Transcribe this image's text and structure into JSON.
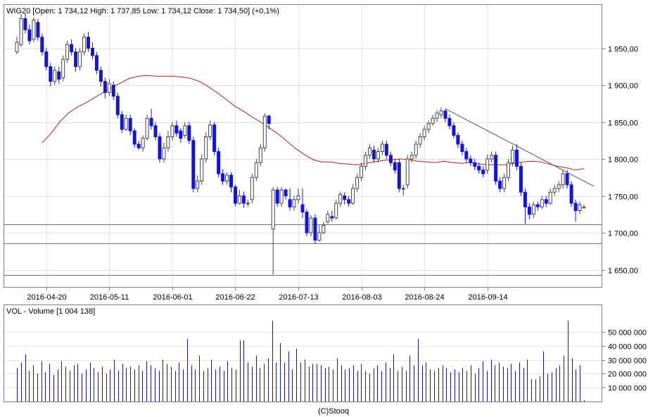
{
  "chart_data": [
    {
      "type": "candlestick",
      "title": "WIG20 [Open: 1 734,12  High: 1 737,85  Low: 1 734,12  Close: 1 734,50] (+0,1%)",
      "ylim": [
        1640,
        2000
      ],
      "y_ticks": [
        1650,
        1700,
        1750,
        1800,
        1850,
        1900,
        1950
      ],
      "y_tick_labels": [
        "1 650,00",
        "1 700,00",
        "1 750,00",
        "1 800,00",
        "1 850,00",
        "1 900,00",
        "1 950,00"
      ],
      "x_tick_labels": [
        "2016-04-20",
        "2016-05-11",
        "2016-06-01",
        "2016-06-22",
        "2016-07-13",
        "2016-08-03",
        "2016-08-24",
        "2016-09-14"
      ],
      "horizontal_lines": [
        1711,
        1686,
        1643
      ],
      "trendline": {
        "from": [
          1868,
          "2016-08-12"
        ],
        "to": [
          1763,
          "2016-10-05"
        ]
      },
      "moving_average": {
        "color": "#b22222",
        "values": [
          1822,
          1834,
          1850,
          1862,
          1870,
          1876,
          1883,
          1890,
          1897,
          1903,
          1909,
          1912,
          1913,
          1912,
          1912,
          1912,
          1911,
          1909,
          1905,
          1898,
          1890,
          1881,
          1872,
          1865,
          1857,
          1850,
          1842,
          1834,
          1824,
          1814,
          1806,
          1799,
          1796,
          1796,
          1794,
          1793,
          1792,
          1794,
          1796,
          1798,
          1799,
          1800,
          1799,
          1797,
          1796,
          1795,
          1797,
          1795,
          1794,
          1795,
          1793,
          1792,
          1792,
          1792,
          1794,
          1796,
          1797,
          1796,
          1793,
          1790,
          1788,
          1785,
          1787
        ]
      },
      "candles": [
        {
          "o": 1945,
          "c": 1958,
          "h": 1966,
          "l": 1942
        },
        {
          "o": 1955,
          "c": 1990,
          "h": 1996,
          "l": 1952
        },
        {
          "o": 1990,
          "c": 1975,
          "h": 1997,
          "l": 1970
        },
        {
          "o": 1975,
          "c": 1960,
          "h": 1982,
          "l": 1955
        },
        {
          "o": 1962,
          "c": 1988,
          "h": 1992,
          "l": 1958
        },
        {
          "o": 1985,
          "c": 1965,
          "h": 1990,
          "l": 1960
        },
        {
          "o": 1965,
          "c": 1945,
          "h": 1970,
          "l": 1940
        },
        {
          "o": 1945,
          "c": 1925,
          "h": 1950,
          "l": 1920
        },
        {
          "o": 1925,
          "c": 1905,
          "h": 1930,
          "l": 1898
        },
        {
          "o": 1905,
          "c": 1920,
          "h": 1925,
          "l": 1900
        },
        {
          "o": 1918,
          "c": 1908,
          "h": 1925,
          "l": 1902
        },
        {
          "o": 1910,
          "c": 1935,
          "h": 1940,
          "l": 1905
        },
        {
          "o": 1935,
          "c": 1955,
          "h": 1960,
          "l": 1930
        },
        {
          "o": 1955,
          "c": 1945,
          "h": 1962,
          "l": 1940
        },
        {
          "o": 1945,
          "c": 1925,
          "h": 1950,
          "l": 1918
        },
        {
          "o": 1925,
          "c": 1945,
          "h": 1950,
          "l": 1920
        },
        {
          "o": 1945,
          "c": 1965,
          "h": 1970,
          "l": 1940
        },
        {
          "o": 1965,
          "c": 1950,
          "h": 1972,
          "l": 1945
        },
        {
          "o": 1950,
          "c": 1940,
          "h": 1958,
          "l": 1935
        },
        {
          "o": 1940,
          "c": 1920,
          "h": 1945,
          "l": 1915
        },
        {
          "o": 1920,
          "c": 1905,
          "h": 1925,
          "l": 1898
        },
        {
          "o": 1905,
          "c": 1890,
          "h": 1910,
          "l": 1882
        },
        {
          "o": 1890,
          "c": 1902,
          "h": 1908,
          "l": 1885
        },
        {
          "o": 1900,
          "c": 1885,
          "h": 1905,
          "l": 1880
        },
        {
          "o": 1885,
          "c": 1860,
          "h": 1890,
          "l": 1855
        },
        {
          "o": 1860,
          "c": 1840,
          "h": 1865,
          "l": 1835
        },
        {
          "o": 1840,
          "c": 1855,
          "h": 1860,
          "l": 1838
        },
        {
          "o": 1855,
          "c": 1838,
          "h": 1860,
          "l": 1832
        },
        {
          "o": 1838,
          "c": 1820,
          "h": 1842,
          "l": 1815
        },
        {
          "o": 1820,
          "c": 1815,
          "h": 1825,
          "l": 1812
        },
        {
          "o": 1815,
          "c": 1828,
          "h": 1832,
          "l": 1810
        },
        {
          "o": 1828,
          "c": 1855,
          "h": 1860,
          "l": 1825
        },
        {
          "o": 1855,
          "c": 1845,
          "h": 1868,
          "l": 1840
        },
        {
          "o": 1845,
          "c": 1830,
          "h": 1850,
          "l": 1825
        },
        {
          "o": 1830,
          "c": 1800,
          "h": 1835,
          "l": 1795
        },
        {
          "o": 1800,
          "c": 1815,
          "h": 1822,
          "l": 1795
        },
        {
          "o": 1815,
          "c": 1830,
          "h": 1838,
          "l": 1810
        },
        {
          "o": 1830,
          "c": 1845,
          "h": 1850,
          "l": 1825
        },
        {
          "o": 1845,
          "c": 1835,
          "h": 1852,
          "l": 1830
        },
        {
          "o": 1838,
          "c": 1828,
          "h": 1842,
          "l": 1822
        },
        {
          "o": 1832,
          "c": 1845,
          "h": 1850,
          "l": 1828
        },
        {
          "o": 1845,
          "c": 1825,
          "h": 1850,
          "l": 1820
        },
        {
          "o": 1825,
          "c": 1760,
          "h": 1830,
          "l": 1755
        },
        {
          "o": 1760,
          "c": 1770,
          "h": 1778,
          "l": 1755
        },
        {
          "o": 1770,
          "c": 1800,
          "h": 1806,
          "l": 1765
        },
        {
          "o": 1800,
          "c": 1830,
          "h": 1836,
          "l": 1795
        },
        {
          "o": 1830,
          "c": 1846,
          "h": 1852,
          "l": 1826
        },
        {
          "o": 1846,
          "c": 1810,
          "h": 1850,
          "l": 1805
        },
        {
          "o": 1810,
          "c": 1780,
          "h": 1815,
          "l": 1775
        },
        {
          "o": 1780,
          "c": 1770,
          "h": 1786,
          "l": 1765
        },
        {
          "o": 1770,
          "c": 1778,
          "h": 1782,
          "l": 1765
        },
        {
          "o": 1778,
          "c": 1762,
          "h": 1782,
          "l": 1755
        },
        {
          "o": 1762,
          "c": 1740,
          "h": 1765,
          "l": 1736
        },
        {
          "o": 1740,
          "c": 1750,
          "h": 1758,
          "l": 1738
        },
        {
          "o": 1750,
          "c": 1740,
          "h": 1756,
          "l": 1734
        },
        {
          "o": 1740,
          "c": 1740,
          "h": 1745,
          "l": 1735
        },
        {
          "o": 1745,
          "c": 1775,
          "h": 1780,
          "l": 1740
        },
        {
          "o": 1775,
          "c": 1795,
          "h": 1800,
          "l": 1770
        },
        {
          "o": 1795,
          "c": 1815,
          "h": 1820,
          "l": 1790
        },
        {
          "o": 1815,
          "c": 1858,
          "h": 1862,
          "l": 1810
        },
        {
          "o": 1858,
          "c": 1848,
          "h": 1860,
          "l": 1840
        },
        {
          "o": 1705,
          "c": 1758,
          "h": 1762,
          "l": 1643
        },
        {
          "o": 1758,
          "c": 1740,
          "h": 1762,
          "l": 1735
        },
        {
          "o": 1740,
          "c": 1758,
          "h": 1762,
          "l": 1735
        },
        {
          "o": 1758,
          "c": 1750,
          "h": 1760,
          "l": 1745
        },
        {
          "o": 1745,
          "c": 1735,
          "h": 1760,
          "l": 1730
        },
        {
          "o": 1735,
          "c": 1745,
          "h": 1750,
          "l": 1730
        },
        {
          "o": 1745,
          "c": 1750,
          "h": 1760,
          "l": 1740
        },
        {
          "o": 1738,
          "c": 1728,
          "h": 1760,
          "l": 1720
        },
        {
          "o": 1728,
          "c": 1700,
          "h": 1732,
          "l": 1695
        },
        {
          "o": 1700,
          "c": 1720,
          "h": 1724,
          "l": 1695
        },
        {
          "o": 1720,
          "c": 1690,
          "h": 1725,
          "l": 1685
        },
        {
          "o": 1690,
          "c": 1700,
          "h": 1710,
          "l": 1688
        },
        {
          "o": 1700,
          "c": 1710,
          "h": 1715,
          "l": 1698
        },
        {
          "o": 1715,
          "c": 1725,
          "h": 1730,
          "l": 1712
        },
        {
          "o": 1722,
          "c": 1720,
          "h": 1730,
          "l": 1715
        },
        {
          "o": 1720,
          "c": 1740,
          "h": 1745,
          "l": 1718
        },
        {
          "o": 1740,
          "c": 1752,
          "h": 1756,
          "l": 1735
        },
        {
          "o": 1750,
          "c": 1745,
          "h": 1755,
          "l": 1738
        },
        {
          "o": 1745,
          "c": 1740,
          "h": 1750,
          "l": 1735
        },
        {
          "o": 1740,
          "c": 1760,
          "h": 1766,
          "l": 1738
        },
        {
          "o": 1760,
          "c": 1775,
          "h": 1780,
          "l": 1755
        },
        {
          "o": 1775,
          "c": 1790,
          "h": 1795,
          "l": 1770
        },
        {
          "o": 1790,
          "c": 1805,
          "h": 1810,
          "l": 1785
        },
        {
          "o": 1805,
          "c": 1815,
          "h": 1820,
          "l": 1800
        },
        {
          "o": 1812,
          "c": 1800,
          "h": 1818,
          "l": 1795
        },
        {
          "o": 1800,
          "c": 1810,
          "h": 1815,
          "l": 1795
        },
        {
          "o": 1810,
          "c": 1820,
          "h": 1825,
          "l": 1805
        },
        {
          "o": 1820,
          "c": 1805,
          "h": 1825,
          "l": 1800
        },
        {
          "o": 1805,
          "c": 1795,
          "h": 1810,
          "l": 1790
        },
        {
          "o": 1795,
          "c": 1785,
          "h": 1800,
          "l": 1780
        },
        {
          "o": 1795,
          "c": 1760,
          "h": 1800,
          "l": 1755
        },
        {
          "o": 1760,
          "c": 1760,
          "h": 1765,
          "l": 1750
        },
        {
          "o": 1765,
          "c": 1800,
          "h": 1805,
          "l": 1760
        },
        {
          "o": 1800,
          "c": 1805,
          "h": 1810,
          "l": 1795
        },
        {
          "o": 1805,
          "c": 1820,
          "h": 1825,
          "l": 1800
        },
        {
          "o": 1820,
          "c": 1830,
          "h": 1835,
          "l": 1815
        },
        {
          "o": 1830,
          "c": 1840,
          "h": 1845,
          "l": 1825
        },
        {
          "o": 1840,
          "c": 1848,
          "h": 1852,
          "l": 1835
        },
        {
          "o": 1848,
          "c": 1855,
          "h": 1860,
          "l": 1845
        },
        {
          "o": 1855,
          "c": 1862,
          "h": 1866,
          "l": 1850
        },
        {
          "o": 1860,
          "c": 1865,
          "h": 1870,
          "l": 1855
        },
        {
          "o": 1865,
          "c": 1855,
          "h": 1868,
          "l": 1850
        },
        {
          "o": 1855,
          "c": 1845,
          "h": 1860,
          "l": 1840
        },
        {
          "o": 1845,
          "c": 1832,
          "h": 1850,
          "l": 1828
        },
        {
          "o": 1832,
          "c": 1820,
          "h": 1836,
          "l": 1815
        },
        {
          "o": 1820,
          "c": 1810,
          "h": 1825,
          "l": 1805
        },
        {
          "o": 1810,
          "c": 1800,
          "h": 1815,
          "l": 1795
        },
        {
          "o": 1800,
          "c": 1795,
          "h": 1805,
          "l": 1790
        },
        {
          "o": 1795,
          "c": 1790,
          "h": 1800,
          "l": 1785
        },
        {
          "o": 1790,
          "c": 1785,
          "h": 1795,
          "l": 1780
        },
        {
          "o": 1785,
          "c": 1780,
          "h": 1790,
          "l": 1775
        },
        {
          "o": 1785,
          "c": 1800,
          "h": 1806,
          "l": 1780
        },
        {
          "o": 1800,
          "c": 1805,
          "h": 1810,
          "l": 1795
        },
        {
          "o": 1805,
          "c": 1770,
          "h": 1810,
          "l": 1765
        },
        {
          "o": 1770,
          "c": 1760,
          "h": 1775,
          "l": 1755
        },
        {
          "o": 1760,
          "c": 1775,
          "h": 1780,
          "l": 1755
        },
        {
          "o": 1775,
          "c": 1795,
          "h": 1800,
          "l": 1770
        },
        {
          "o": 1795,
          "c": 1812,
          "h": 1818,
          "l": 1790
        },
        {
          "o": 1812,
          "c": 1790,
          "h": 1820,
          "l": 1785
        },
        {
          "o": 1790,
          "c": 1755,
          "h": 1795,
          "l": 1750
        },
        {
          "o": 1755,
          "c": 1735,
          "h": 1760,
          "l": 1712
        },
        {
          "o": 1735,
          "c": 1725,
          "h": 1740,
          "l": 1718
        },
        {
          "o": 1725,
          "c": 1738,
          "h": 1742,
          "l": 1720
        },
        {
          "o": 1738,
          "c": 1735,
          "h": 1742,
          "l": 1730
        },
        {
          "o": 1735,
          "c": 1745,
          "h": 1750,
          "l": 1732
        },
        {
          "o": 1745,
          "c": 1740,
          "h": 1750,
          "l": 1735
        },
        {
          "o": 1740,
          "c": 1755,
          "h": 1760,
          "l": 1738
        },
        {
          "o": 1755,
          "c": 1760,
          "h": 1765,
          "l": 1750
        },
        {
          "o": 1760,
          "c": 1765,
          "h": 1770,
          "l": 1755
        },
        {
          "o": 1765,
          "c": 1780,
          "h": 1785,
          "l": 1760
        },
        {
          "o": 1780,
          "c": 1765,
          "h": 1785,
          "l": 1760
        },
        {
          "o": 1765,
          "c": 1740,
          "h": 1770,
          "l": 1735
        },
        {
          "o": 1740,
          "c": 1730,
          "h": 1745,
          "l": 1715
        },
        {
          "o": 1730,
          "c": 1738,
          "h": 1742,
          "l": 1725
        },
        {
          "o": 1734.12,
          "c": 1734.5,
          "h": 1737.85,
          "l": 1734.12
        }
      ]
    },
    {
      "type": "bar",
      "title": "VOL - Volume [1 004 138]",
      "ylim": [
        0,
        60000000
      ],
      "y_ticks": [
        10000000,
        20000000,
        30000000,
        40000000,
        50000000
      ],
      "y_tick_labels": [
        "10 000 000",
        "20 000 000",
        "30 000 000",
        "40 000 000",
        "50 000 000"
      ],
      "values": [
        24000000,
        28000000,
        34000000,
        22000000,
        26000000,
        20000000,
        29000000,
        21000000,
        27000000,
        19000000,
        23000000,
        29000000,
        25000000,
        22000000,
        26000000,
        27000000,
        20000000,
        23000000,
        28000000,
        24000000,
        21000000,
        25000000,
        20000000,
        23000000,
        30000000,
        22000000,
        27000000,
        24000000,
        25000000,
        23000000,
        26000000,
        22000000,
        29000000,
        26000000,
        24000000,
        22000000,
        30000000,
        27000000,
        25000000,
        22000000,
        28000000,
        23000000,
        45000000,
        26000000,
        23000000,
        33000000,
        22000000,
        24000000,
        30000000,
        23000000,
        25000000,
        22000000,
        29000000,
        24000000,
        23000000,
        44000000,
        44000000,
        28000000,
        25000000,
        33000000,
        24000000,
        27000000,
        31000000,
        58000000,
        28000000,
        42000000,
        28000000,
        36000000,
        23000000,
        38000000,
        28000000,
        30000000,
        25000000,
        27000000,
        27000000,
        26000000,
        24000000,
        25000000,
        23000000,
        31000000,
        26000000,
        23000000,
        24000000,
        26000000,
        22000000,
        27000000,
        22000000,
        20000000,
        24000000,
        26000000,
        22000000,
        28000000,
        24000000,
        34000000,
        22000000,
        25000000,
        22000000,
        33000000,
        26000000,
        45000000,
        26000000,
        28000000,
        23000000,
        22000000,
        24000000,
        26000000,
        24000000,
        21000000,
        23000000,
        21000000,
        24000000,
        22000000,
        26000000,
        20000000,
        24000000,
        29000000,
        22000000,
        30000000,
        26000000,
        28000000,
        25000000,
        24000000,
        27000000,
        22000000,
        28000000,
        24000000,
        30000000,
        16000000,
        16000000,
        18000000,
        36000000,
        20000000,
        21000000,
        24000000,
        26000000,
        33000000,
        58000000,
        31000000,
        23000000,
        26000000,
        1004138
      ]
    }
  ],
  "footer": {
    "credit": "(C)Stooq"
  }
}
